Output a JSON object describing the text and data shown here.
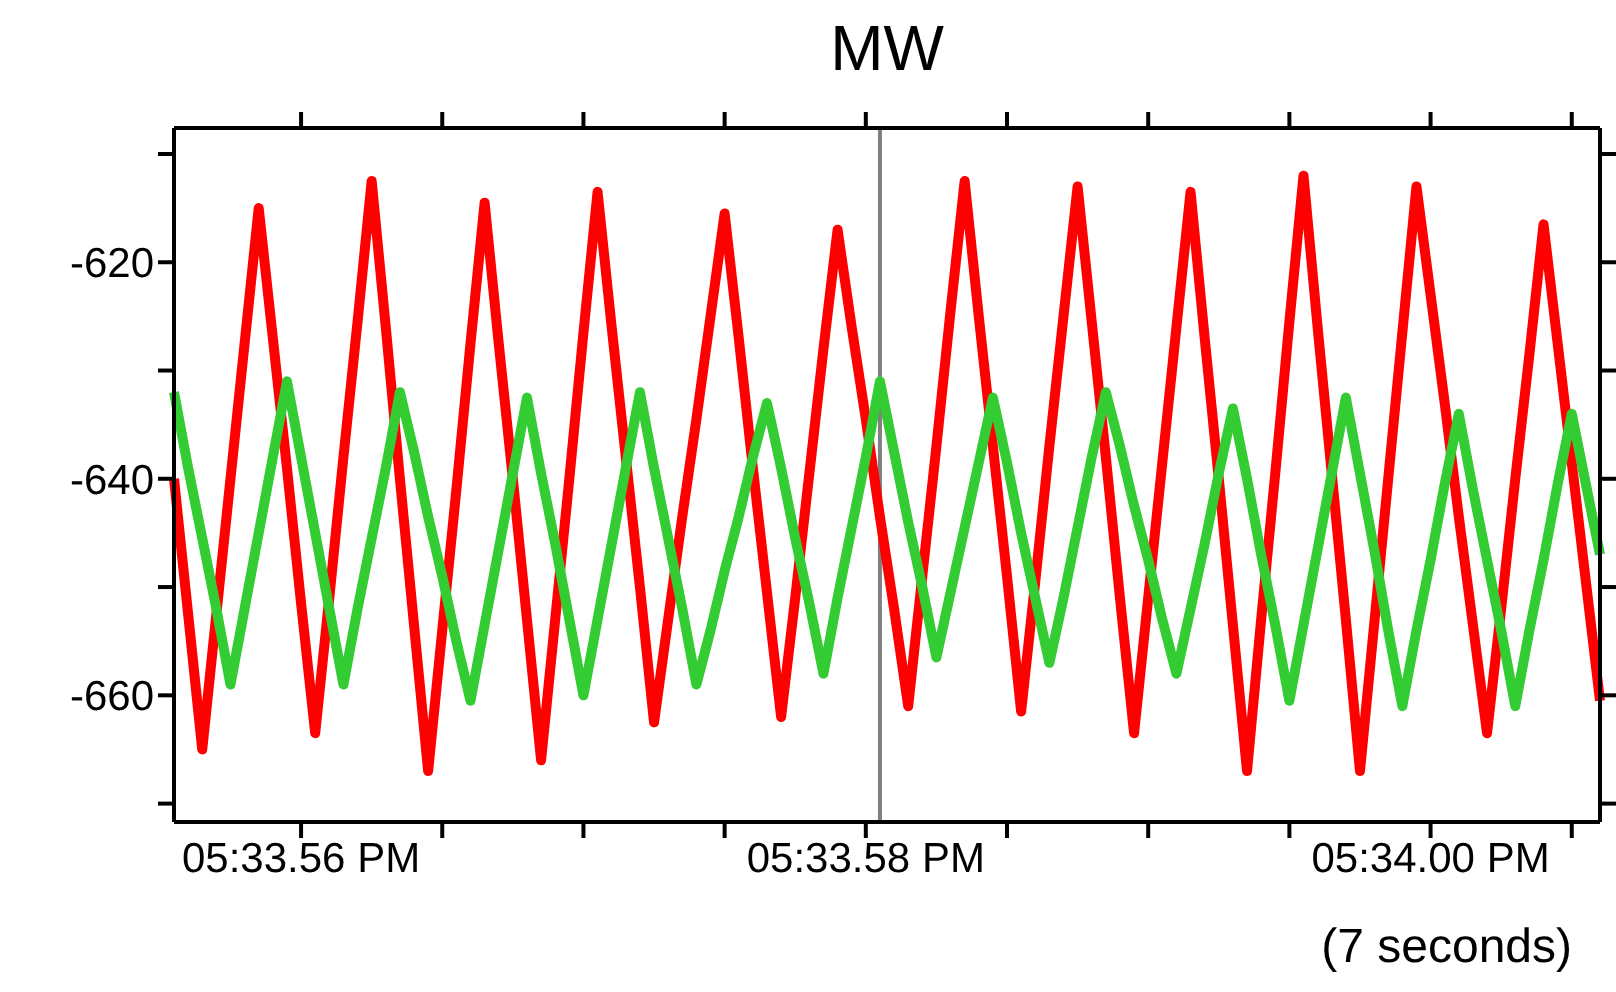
{
  "chart_data": {
    "type": "line",
    "title": "MW",
    "annotations": [
      "(7 seconds)"
    ],
    "categories": [
      null,
      null,
      null,
      null,
      null,
      null,
      null,
      null,
      null,
      "05:33.56 PM",
      null,
      null,
      null,
      null,
      null,
      null,
      null,
      null,
      null,
      null,
      null,
      null,
      null,
      null,
      null,
      null,
      null,
      null,
      null,
      null,
      null,
      null,
      null,
      null,
      null,
      null,
      null,
      null,
      null,
      null,
      null,
      null,
      null,
      null,
      null,
      null,
      null,
      null,
      null,
      "05:33.58 PM",
      null,
      null,
      null,
      null,
      null,
      null,
      null,
      null,
      null,
      null,
      null,
      null,
      null,
      null,
      null,
      null,
      null,
      null,
      null,
      null,
      null,
      null,
      null,
      null,
      null,
      null,
      null,
      null,
      null,
      null,
      null,
      null,
      null,
      null,
      null,
      null,
      null,
      null,
      null,
      "05:34.00 PM",
      null,
      null,
      null,
      null,
      null,
      null,
      null,
      null,
      null,
      null,
      null,
      null
    ],
    "ylim": [
      -671.7,
      -607.6
    ],
    "yticks": [
      {
        "value": -610,
        "label": null
      },
      -620,
      {
        "value": -630,
        "label": null
      },
      -640,
      {
        "value": -650,
        "label": null
      },
      -660,
      {
        "value": -670,
        "label": null
      }
    ],
    "series": [
      {
        "color": "#ff0000",
        "values": [
          -640,
          -652.5,
          -665,
          -652.5,
          -640,
          -627.5,
          -615,
          -627,
          -639,
          -651.5,
          -663.5,
          -651,
          -638,
          -625.5,
          -612.5,
          -626,
          -640,
          -653.5,
          -667,
          -654,
          -641,
          -627.5,
          -614.5,
          -627.5,
          -640,
          -653,
          -666,
          -653,
          -640,
          -626.5,
          -613.5,
          -626,
          -638,
          -650,
          -662.5,
          -653,
          -643.5,
          -634.5,
          -625,
          -615.5,
          -627,
          -639,
          -650.5,
          -662,
          -651,
          -639.5,
          -628,
          -617,
          -626,
          -634.5,
          -643.5,
          -652,
          -661,
          -649,
          -637,
          -624.5,
          -612.5,
          -625,
          -637,
          -649,
          -661.5,
          -649.5,
          -637,
          -625,
          -613,
          -625.5,
          -638,
          -651,
          -663.5,
          -651,
          -638.5,
          -626,
          -613.5,
          -627,
          -640,
          -653.5,
          -667,
          -653,
          -639.5,
          -625.5,
          -612,
          -626,
          -639.5,
          -653,
          -667,
          -653.5,
          -640,
          -626.5,
          -613,
          -623,
          -633,
          -643.5,
          -653.5,
          -663.5,
          -652,
          -640,
          -628.5,
          -616.5,
          -627.5,
          -638.5,
          -649.5,
          -660.5
        ]
      },
      {
        "color": "#33cc33",
        "values": [
          -632,
          -639,
          -645.5,
          -652,
          -659,
          -652,
          -645,
          -638,
          -631,
          -638,
          -645,
          -652,
          -659,
          -652,
          -645.5,
          -639,
          -632,
          -637.5,
          -643.5,
          -649,
          -655,
          -660.5,
          -653.5,
          -646.5,
          -639.5,
          -632.5,
          -639.5,
          -646,
          -653,
          -660,
          -653,
          -646,
          -639,
          -632,
          -639,
          -645.5,
          -652,
          -659,
          -654,
          -648.5,
          -643.5,
          -638,
          -633,
          -639,
          -645.5,
          -651.5,
          -658,
          -651,
          -644.5,
          -638,
          -631,
          -637.5,
          -644,
          -650,
          -656.5,
          -650.5,
          -644.5,
          -638.5,
          -632.5,
          -638.5,
          -645,
          -651,
          -657,
          -651,
          -644.5,
          -638,
          -632,
          -637,
          -642.5,
          -647.5,
          -653,
          -658,
          -652,
          -646,
          -639.5,
          -633.5,
          -640,
          -647,
          -653.5,
          -660.5,
          -653.5,
          -646.5,
          -639.5,
          -632.5,
          -639.5,
          -646.5,
          -654,
          -661,
          -654,
          -647.5,
          -640.5,
          -634,
          -641,
          -647.5,
          -654,
          -661,
          -654,
          -647.5,
          -640.5,
          -634,
          -640.5,
          -647
        ]
      }
    ]
  }
}
